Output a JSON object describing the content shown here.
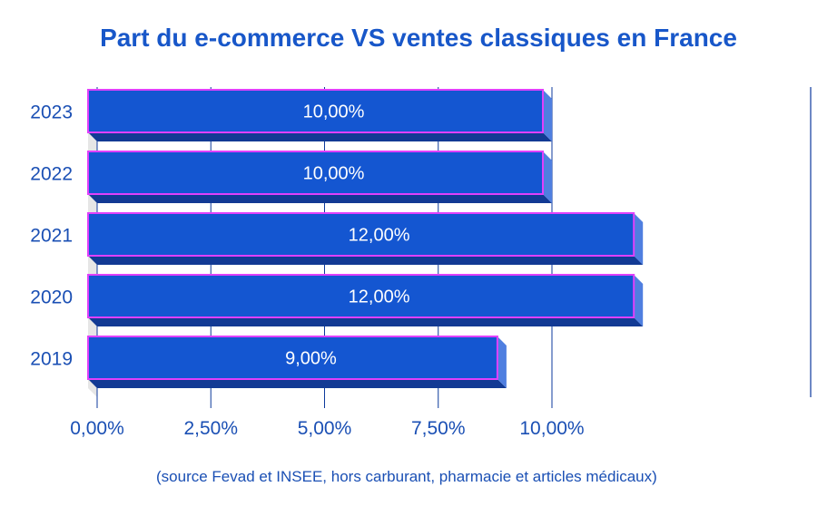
{
  "chart_data": {
    "type": "bar",
    "orientation": "horizontal",
    "title": "Part du e-commerce VS ventes classiques en France",
    "categories": [
      "2023",
      "2022",
      "2021",
      "2020",
      "2019"
    ],
    "values": [
      10,
      10,
      12,
      12,
      9
    ],
    "value_labels": [
      "10,00%",
      "10,00%",
      "12,00%",
      "12,00%",
      "9,00%"
    ],
    "xticks": [
      "0,00%",
      "2,50%",
      "5,00%",
      "7,50%",
      "10,00%"
    ],
    "xtick_values": [
      0,
      2.5,
      5,
      7.5,
      10
    ],
    "xlim": [
      0,
      12.5
    ],
    "grid": true,
    "legend": "none",
    "style": "3d"
  },
  "footnote": "(source Fevad et INSEE, hors carburant, pharmacie et articles médicaux)",
  "colors": {
    "bar_front": "#1456d1",
    "bar_side": "#4f7fe0",
    "bar_bottom": "#123a94",
    "bar_outline": "#e040fb",
    "gridline": "#0d3a9c",
    "text": "#1a4fb4",
    "title": "#1857c9",
    "value_label": "#ffffff",
    "floor": "#e6e6e6"
  }
}
